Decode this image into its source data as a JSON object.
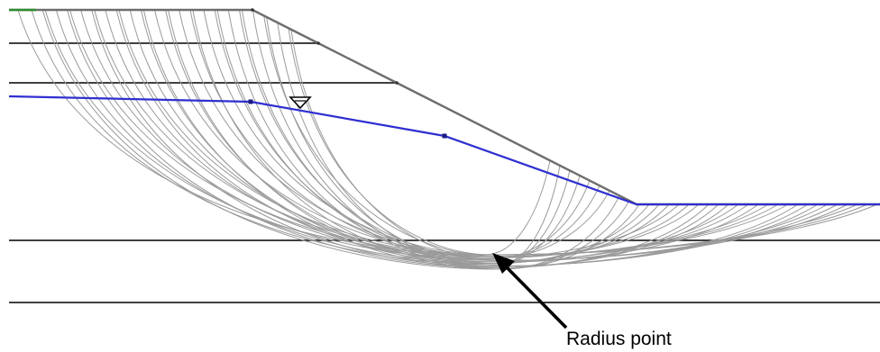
{
  "annotation": {
    "label": "Radius point"
  },
  "colors": {
    "boundary": "#000000",
    "ground_surface": "#6e6e6e",
    "ground_surface_crest": "#2e8b2e",
    "water_table": "#2f2fd0",
    "slip_surfaces": "#9a9a9a",
    "arrow": "#000000"
  },
  "icons": {
    "water_marker": "inverted-triangle-icon",
    "radius_point_arrow": "arrow-icon"
  }
}
